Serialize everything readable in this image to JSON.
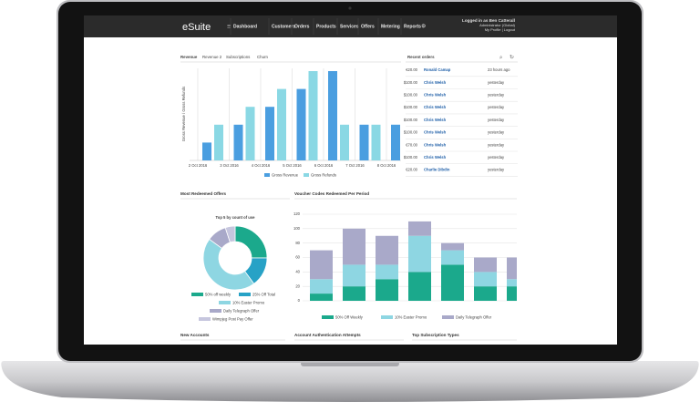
{
  "header": {
    "logo": "eSuite",
    "nav": [
      "Dashboard",
      "Customers",
      "Orders",
      "Products",
      "Services",
      "Offers",
      "Metering",
      "Reports"
    ],
    "user": [
      "Logged in as Ben Catterall",
      "Administrator (Global)",
      "My Profile | Logout"
    ]
  },
  "revenue_chart": {
    "type": "bar",
    "tabs": [
      "Revenue",
      "Revenue 2",
      "Subscriptions",
      "Churn"
    ],
    "y_label": "Gross Revenue / Gross Refunds",
    "categories": [
      "2 Oct 2016",
      "3 Oct 2016",
      "4 Oct 2016",
      "5 Oct 2016",
      "6 Oct 2016",
      "7 Oct 2016",
      "8 Oct 2016"
    ],
    "series": [
      {
        "name": "Gross Revenue",
        "color": "#4a9ee0",
        "values": [
          10,
          20,
          30,
          40,
          50,
          20,
          20
        ]
      },
      {
        "name": "Gross Refunds",
        "color": "#8ad8e4",
        "values": [
          20,
          30,
          40,
          50,
          20,
          20,
          null
        ]
      }
    ],
    "ylim": [
      0,
      50
    ]
  },
  "recent_orders": {
    "title": "Recent orders",
    "rows": [
      [
        "€20.00",
        "Ronald Camap",
        "23 hours ago"
      ],
      [
        "$100.00",
        "Chris Welsh",
        "yesterday"
      ],
      [
        "$100.00",
        "Chris Welsh",
        "yesterday"
      ],
      [
        "$100.00",
        "Chris Welsh",
        "yesterday"
      ],
      [
        "$100.00",
        "Chris Welsh",
        "yesterday"
      ],
      [
        "$100.00",
        "Chris Welsh",
        "yesterday"
      ],
      [
        "€70.00",
        "Chris Welsh",
        "yesterday"
      ],
      [
        "$100.00",
        "Chris Welsh",
        "yesterday"
      ],
      [
        "€20.00",
        "Charlie Dibdin",
        "yesterday"
      ]
    ]
  },
  "offers_chart": {
    "type": "pie",
    "title": "Most Redeemed Offers",
    "subtitle": "Top 5 by count of use",
    "categories": [
      "50% off weekly",
      "25% Off Total",
      "10% Easter Promo",
      "Daily Telegraph Offer",
      "Wimpjeg Post Pay Offer"
    ],
    "values": [
      25,
      15,
      45,
      10,
      5
    ],
    "colors": [
      "#1ba98c",
      "#27a2c6",
      "#8ed6e2",
      "#a9a9c9",
      "#c6c6de"
    ]
  },
  "voucher_chart": {
    "type": "stacked_bar",
    "title": "Voucher Codes Redeemed Per Period",
    "categories": [
      null,
      null,
      null,
      null,
      null,
      null,
      null
    ],
    "series": [
      {
        "name": "50% Off Weekly",
        "color": "#1ba98c",
        "values": [
          10,
          20,
          30,
          40,
          50,
          20,
          20
        ]
      },
      {
        "name": "10% Easter Promo",
        "color": "#8ed6e2",
        "values": [
          20,
          30,
          20,
          50,
          20,
          20,
          10
        ]
      },
      {
        "name": "Daily Telegraph Offer",
        "color": "#a9a9c9",
        "values": [
          40,
          50,
          40,
          20,
          10,
          20,
          30
        ]
      }
    ],
    "ylim": [
      0,
      120
    ],
    "yticks": [
      0,
      20,
      40,
      60,
      80,
      100,
      120
    ],
    "grid": true
  },
  "sections": [
    "New Accounts",
    "Account Authentication Attempts",
    "Top Subscription Types"
  ]
}
